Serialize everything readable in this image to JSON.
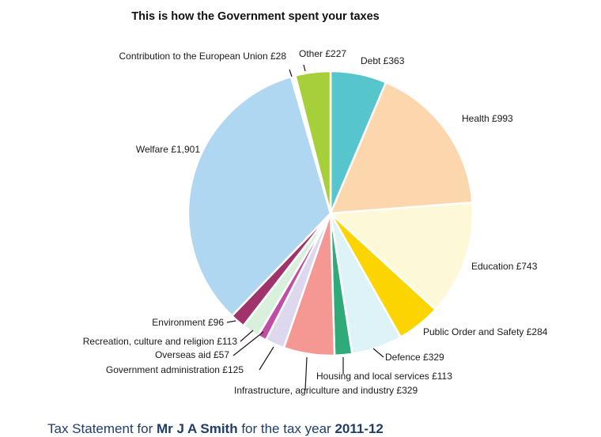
{
  "chart_data": {
    "type": "pie",
    "title": "This is how the Government spent your taxes",
    "start_angle_deg": 0,
    "direction": "clockwise",
    "slices": [
      {
        "label": "Debt",
        "value": 363,
        "display": "Debt £363",
        "color": "#56c6cc"
      },
      {
        "label": "Health",
        "value": 993,
        "display": "Health £993",
        "color": "#fcd7ad"
      },
      {
        "label": "Education",
        "value": 743,
        "display": "Education £743",
        "color": "#fdf9d8"
      },
      {
        "label": "Public Order and Safety",
        "value": 284,
        "display": "Public Order and Safety £284",
        "color": "#fcd400"
      },
      {
        "label": "Defence",
        "value": 329,
        "display": "Defence £329",
        "color": "#ddf3f8"
      },
      {
        "label": "Housing and local services",
        "value": 113,
        "display": "Housing and local services £113",
        "color": "#2faa78"
      },
      {
        "label": "Infrastructure, agriculture and industry",
        "value": 329,
        "display": "Infrastructure, agriculture and industry £329",
        "color": "#f59793"
      },
      {
        "label": "Government administration",
        "value": 125,
        "display": "Government administration £125",
        "color": "#ddd8ee"
      },
      {
        "label": "Overseas aid",
        "value": 57,
        "display": "Overseas aid £57",
        "color": "#c04ca6"
      },
      {
        "label": "Recreation, culture and religion",
        "value": 113,
        "display": "Recreation, culture and religion £113",
        "color": "#d9f1dc"
      },
      {
        "label": "Environment",
        "value": 96,
        "display": "Environment £96",
        "color": "#a0336b"
      },
      {
        "label": "Welfare",
        "value": 1901,
        "display": "Welfare £1,901",
        "color": "#b0d7f1"
      },
      {
        "label": "Contribution to the European Union",
        "value": 28,
        "display": "Contribution to the European Union £28",
        "color": "#ffffff"
      },
      {
        "label": "Other",
        "value": 227,
        "display": "Other £227",
        "color": "#a7cf3a"
      }
    ]
  },
  "footer": {
    "prefix": "Tax Statement for ",
    "name": "Mr J A Smith",
    "middle": " for the tax year ",
    "year": "2011-12"
  }
}
